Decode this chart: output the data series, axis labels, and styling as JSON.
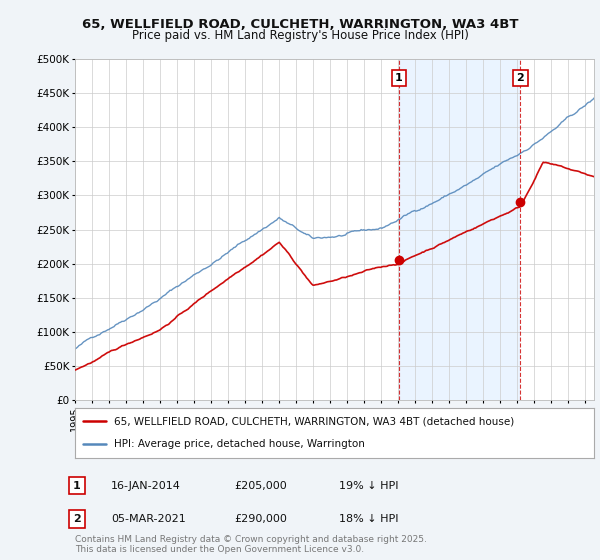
{
  "title_line1": "65, WELLFIELD ROAD, CULCHETH, WARRINGTON, WA3 4BT",
  "title_line2": "Price paid vs. HM Land Registry's House Price Index (HPI)",
  "ylim": [
    0,
    500000
  ],
  "yticks": [
    0,
    50000,
    100000,
    150000,
    200000,
    250000,
    300000,
    350000,
    400000,
    450000,
    500000
  ],
  "ytick_labels": [
    "£0",
    "£50K",
    "£100K",
    "£150K",
    "£200K",
    "£250K",
    "£300K",
    "£350K",
    "£400K",
    "£450K",
    "£500K"
  ],
  "bg_color": "#f0f4f8",
  "plot_bg_color": "#ffffff",
  "grid_color": "#cccccc",
  "red_color": "#cc0000",
  "blue_color": "#5588bb",
  "blue_fill_color": "#ddeeff",
  "purchase1_year": 2014.04,
  "purchase1_price": 205000,
  "purchase1_label": "1",
  "purchase1_date": "16-JAN-2014",
  "purchase1_hpi": "19% ↓ HPI",
  "purchase2_year": 2021.17,
  "purchase2_price": 290000,
  "purchase2_label": "2",
  "purchase2_date": "05-MAR-2021",
  "purchase2_hpi": "18% ↓ HPI",
  "legend_label_red": "65, WELLFIELD ROAD, CULCHETH, WARRINGTON, WA3 4BT (detached house)",
  "legend_label_blue": "HPI: Average price, detached house, Warrington",
  "footer": "Contains HM Land Registry data © Crown copyright and database right 2025.\nThis data is licensed under the Open Government Licence v3.0.",
  "xmin": 1995,
  "xmax": 2025.5
}
